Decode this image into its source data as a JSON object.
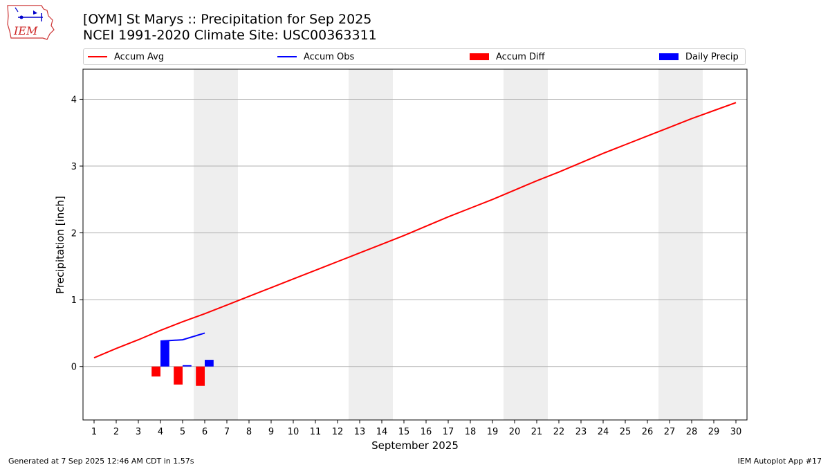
{
  "header": {
    "title_line1": "[OYM] St Marys :: Precipitation for Sep 2025",
    "title_line2": "NCEI 1991-2020 Climate Site: USC00363311",
    "logo_text": "IEM"
  },
  "legend": {
    "accum_avg": "Accum Avg",
    "accum_obs": "Accum Obs",
    "accum_diff": "Accum Diff",
    "daily_precip": "Daily Precip"
  },
  "footer": {
    "generated": "Generated at 7 Sep 2025 12:46 AM CDT in 1.57s",
    "app": "IEM Autoplot App #17"
  },
  "colors": {
    "avg": "#ff0000",
    "obs": "#0000ff",
    "diff": "#ff0000",
    "daily": "#0000ff",
    "weekend_shade": "#eeeeee",
    "grid": "#b0b0b0"
  },
  "chart_data": {
    "type": "line",
    "title": "[OYM] St Marys :: Precipitation for Sep 2025",
    "xlabel": "September 2025",
    "ylabel": "Precipitation [inch]",
    "x": [
      1,
      2,
      3,
      4,
      5,
      6,
      7,
      8,
      9,
      10,
      11,
      12,
      13,
      14,
      15,
      16,
      17,
      18,
      19,
      20,
      21,
      22,
      23,
      24,
      25,
      26,
      27,
      28,
      29,
      30
    ],
    "xlim": [
      0.5,
      30.5
    ],
    "ylim": [
      -0.8,
      4.45
    ],
    "yticks": [
      0,
      1,
      2,
      3,
      4
    ],
    "grid": "horizontal",
    "legend_position": "top",
    "weekends": [
      [
        6,
        7
      ],
      [
        13,
        14
      ],
      [
        20,
        21
      ],
      [
        27,
        28
      ]
    ],
    "series": [
      {
        "name": "Accum Avg",
        "kind": "line",
        "x": [
          1,
          2,
          3,
          4,
          5,
          6,
          7,
          8,
          9,
          10,
          11,
          12,
          13,
          14,
          15,
          16,
          17,
          18,
          19,
          20,
          21,
          22,
          23,
          24,
          25,
          26,
          27,
          28,
          29,
          30
        ],
        "values": [
          0.13,
          0.27,
          0.4,
          0.54,
          0.67,
          0.79,
          0.92,
          1.05,
          1.18,
          1.31,
          1.44,
          1.57,
          1.7,
          1.83,
          1.96,
          2.1,
          2.24,
          2.37,
          2.5,
          2.64,
          2.78,
          2.91,
          3.05,
          3.19,
          3.32,
          3.45,
          3.58,
          3.71,
          3.83,
          3.95
        ]
      },
      {
        "name": "Accum Obs",
        "kind": "line",
        "x": [
          4,
          5,
          6
        ],
        "values": [
          0.38,
          0.4,
          0.5
        ]
      },
      {
        "name": "Accum Diff",
        "kind": "bar",
        "x": [
          4,
          5,
          6
        ],
        "values": [
          -0.15,
          -0.27,
          -0.29
        ]
      },
      {
        "name": "Daily Precip",
        "kind": "bar",
        "x": [
          4,
          5,
          6
        ],
        "values": [
          0.38,
          0.02,
          0.1
        ]
      }
    ]
  }
}
